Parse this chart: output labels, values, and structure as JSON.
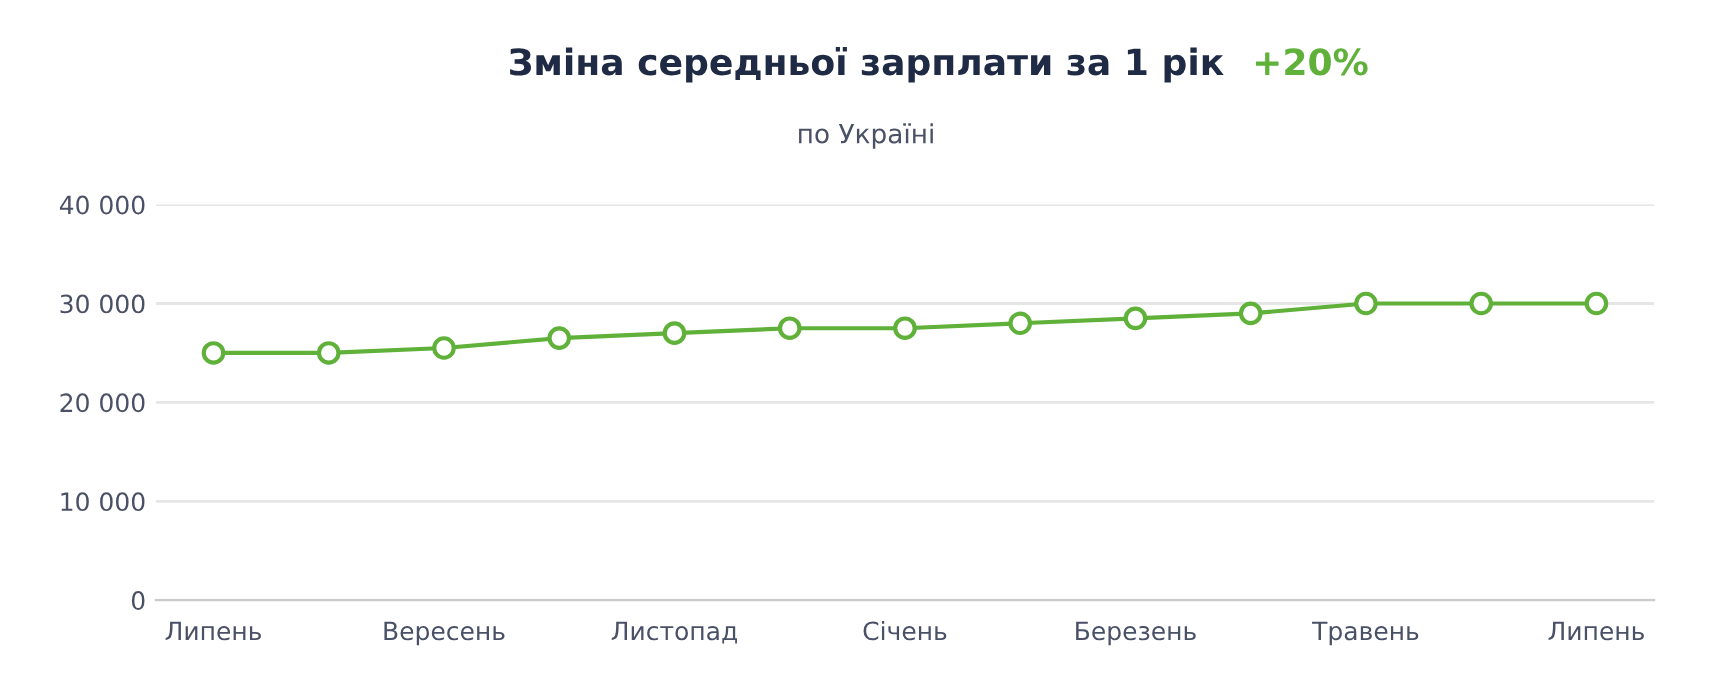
{
  "chart_data": {
    "type": "line",
    "title": "Зміна середньої зарплати за 1 рік",
    "subtitle": "по Україні",
    "annotations": [
      "+20%"
    ],
    "categories": [
      "Липень",
      null,
      "Вересень",
      null,
      "Листопад",
      null,
      "Січень",
      null,
      "Березень",
      null,
      "Травень",
      null,
      "Липень"
    ],
    "series": [
      {
        "color": "#5fb13a",
        "values": [
          25000,
          25000,
          25500,
          26500,
          27000,
          27500,
          27500,
          28000,
          28500,
          29000,
          30000,
          30000,
          30000
        ]
      }
    ],
    "ylim": [
      0,
      40000
    ],
    "yticks": [
      {
        "value": 0,
        "label": "0"
      },
      {
        "value": 10000,
        "label": "10 000"
      },
      {
        "value": 20000,
        "label": "20 000"
      },
      {
        "value": 30000,
        "label": "30 000"
      },
      {
        "value": 40000,
        "label": "40 000"
      }
    ],
    "grid": "y",
    "legend": false,
    "marker": "circle",
    "line_style": "solid"
  }
}
